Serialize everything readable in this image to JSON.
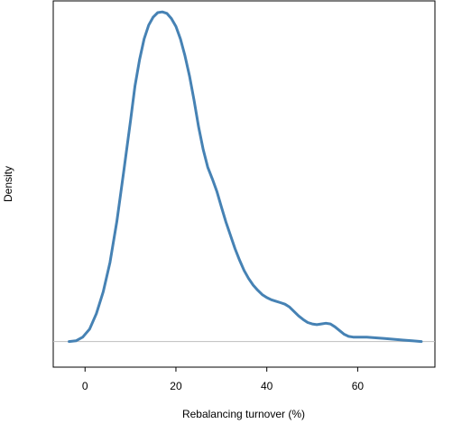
{
  "chart_data": {
    "type": "line",
    "title": "",
    "xlabel": "Rebalancing turnover (%)",
    "ylabel": "Density",
    "xlim": [
      -7,
      77
    ],
    "ylim": [
      -0.0035,
      0.0465
    ],
    "xticks": [
      0,
      20,
      40,
      60
    ],
    "xtick_labels": [
      "0",
      "20",
      "40",
      "60"
    ],
    "show_y_ticks": false,
    "baseline": 0,
    "grid": false,
    "legend": "none",
    "colors": {
      "line": "#4682b4",
      "baseline": "#bebebe",
      "frame": "#000000"
    },
    "series": [
      {
        "x": [
          -3.5,
          -2,
          -0.5,
          1,
          2.5,
          4,
          5.5,
          7,
          8.5,
          10,
          11,
          12,
          13,
          14,
          15,
          16,
          17,
          18,
          19,
          20,
          21,
          22,
          23,
          24,
          25,
          26,
          27,
          28,
          29,
          30,
          31,
          32,
          33,
          34,
          35,
          36,
          37,
          38,
          39,
          40,
          41,
          42,
          43,
          44,
          45,
          46,
          47,
          48,
          49,
          50,
          51,
          52,
          53,
          54,
          55,
          56,
          57,
          58,
          59,
          60,
          62,
          64,
          66,
          68,
          70,
          72,
          74
        ],
        "y": [
          0.0,
          0.0001,
          0.0006,
          0.0017,
          0.0038,
          0.0068,
          0.0108,
          0.0164,
          0.0232,
          0.0301,
          0.0349,
          0.0385,
          0.0413,
          0.0432,
          0.0443,
          0.0449,
          0.045,
          0.0448,
          0.0441,
          0.043,
          0.0413,
          0.039,
          0.0362,
          0.0329,
          0.0293,
          0.0262,
          0.0238,
          0.0222,
          0.0205,
          0.0184,
          0.0163,
          0.0145,
          0.0127,
          0.0111,
          0.0097,
          0.0086,
          0.0077,
          0.007,
          0.0064,
          0.006,
          0.0057,
          0.0055,
          0.0053,
          0.0051,
          0.0047,
          0.0041,
          0.0035,
          0.003,
          0.0026,
          0.0024,
          0.0023,
          0.0024,
          0.0025,
          0.0024,
          0.002,
          0.0015,
          0.001,
          0.0007,
          0.0006,
          0.0006,
          0.0006,
          0.0005,
          0.0004,
          0.0003,
          0.0002,
          0.0001,
          0.0
        ]
      }
    ]
  }
}
